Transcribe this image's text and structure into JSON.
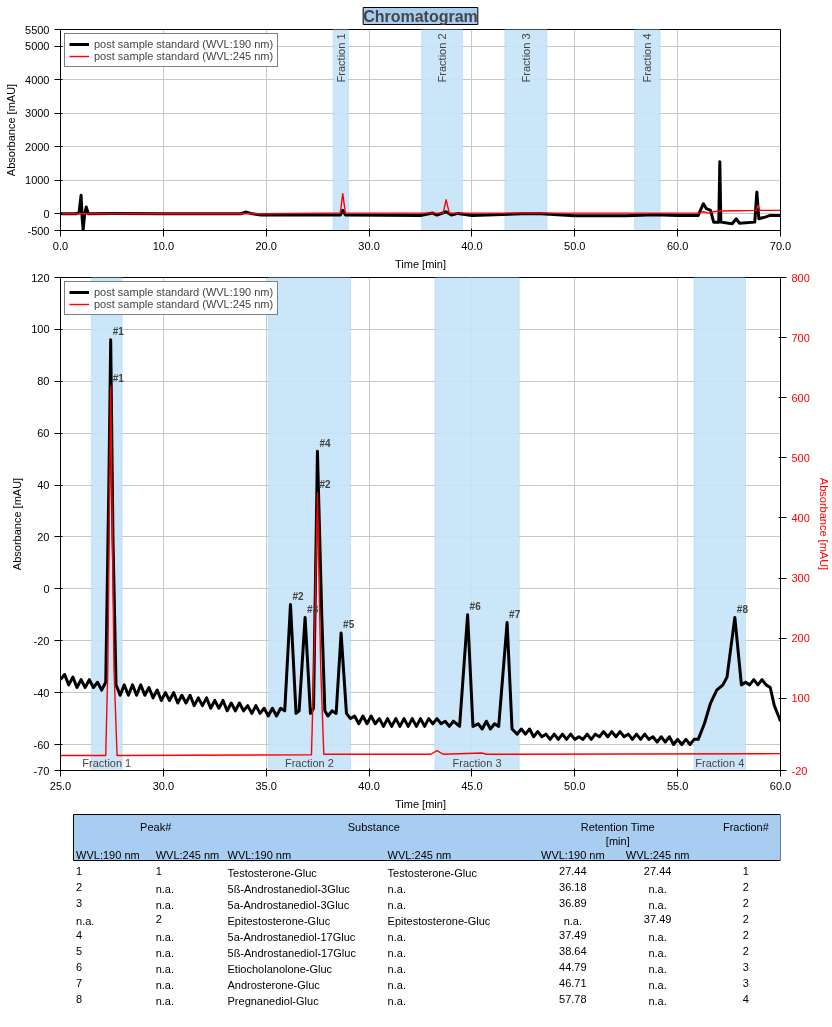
{
  "chart_data": [
    {
      "type": "line",
      "title": "Chromatogram",
      "xlabel": "Time [min]",
      "ylabel": "Absorbance [mAU]",
      "xlim": [
        0,
        70
      ],
      "xticks": [
        {
          "value": 0,
          "label": "0.0"
        },
        {
          "value": 10,
          "label": "10.0"
        },
        {
          "value": 20,
          "label": "20.0"
        },
        {
          "value": 30,
          "label": "30.0"
        },
        {
          "value": 40,
          "label": "40.0"
        },
        {
          "value": 50,
          "label": "50.0"
        },
        {
          "value": 60,
          "label": "60.0"
        },
        {
          "value": 70,
          "label": "70.0"
        }
      ],
      "ylim": [
        -500,
        5500
      ],
      "yticks": [
        -500,
        0,
        1000,
        2000,
        3000,
        4000,
        5000,
        5500
      ],
      "grid": true,
      "legend": "top left",
      "bands": [
        {
          "axis": "x",
          "from": 26.5,
          "to": 28.0,
          "label": "Fraction 1",
          "color": "#c5e3f7"
        },
        {
          "axis": "x",
          "from": 35.1,
          "to": 39.1,
          "label": "Fraction 2",
          "color": "#c5e3f7"
        },
        {
          "axis": "x",
          "from": 43.2,
          "to": 47.3,
          "label": "Fraction 3",
          "color": "#c5e3f7"
        },
        {
          "axis": "x",
          "from": 55.8,
          "to": 58.3,
          "label": "Fraction 4",
          "color": "#c5e3f7"
        }
      ],
      "series": [
        {
          "name": "post sample standard (WVL:190 nm)",
          "color": "#000000",
          "x": [
            0,
            1.5,
            1.8,
            2.0,
            2.1,
            2.2,
            2.35,
            2.5,
            2.7,
            5,
            10,
            17.5,
            18,
            18.5,
            19.5,
            25,
            27.2,
            27.44,
            27.7,
            35,
            36.18,
            36.6,
            37.49,
            38.0,
            38.64,
            40,
            44.79,
            46.71,
            50,
            55,
            57.78,
            60,
            62,
            62.5,
            62.8,
            63.2,
            63.5,
            64.0,
            64.1,
            64.2,
            65.3,
            65.7,
            66,
            67.5,
            67.7,
            67.9,
            68.5,
            69,
            70
          ],
          "values": [
            0,
            0,
            30,
            550,
            -100,
            -480,
            0,
            200,
            0,
            10,
            0,
            0,
            50,
            10,
            -40,
            -40,
            -40,
            100,
            -40,
            -50,
            20,
            -40,
            60,
            -40,
            10,
            -50,
            0,
            0,
            -60,
            -60,
            -30,
            -50,
            -50,
            300,
            150,
            100,
            -250,
            -250,
            1550,
            -250,
            -300,
            -150,
            -280,
            -250,
            650,
            -150,
            -100,
            -50,
            -50
          ]
        },
        {
          "name": "post sample standard (WVL:245 nm)",
          "color": "#ff0000",
          "x": [
            0,
            2,
            20,
            25,
            27.2,
            27.44,
            27.7,
            37.2,
            37.49,
            37.8,
            62,
            62.5,
            63,
            63.5,
            64,
            66,
            67.6,
            67.8,
            68,
            70
          ],
          "values": [
            0,
            0,
            0,
            20,
            20,
            600,
            20,
            20,
            420,
            20,
            20,
            60,
            20,
            60,
            80,
            90,
            100,
            250,
            100,
            100
          ]
        }
      ]
    },
    {
      "type": "line",
      "xlabel": "Time [min]",
      "ylabel": "Absorbance [mAU]",
      "y2label": "Absorbance [mAU]",
      "xlim": [
        25,
        60
      ],
      "xticks": [
        {
          "value": 25,
          "label": "25.0"
        },
        {
          "value": 30,
          "label": "30.0"
        },
        {
          "value": 35,
          "label": "35.0"
        },
        {
          "value": 40,
          "label": "40.0"
        },
        {
          "value": 45,
          "label": "45.0"
        },
        {
          "value": 50,
          "label": "50.0"
        },
        {
          "value": 55,
          "label": "55.0"
        },
        {
          "value": 60,
          "label": "60.0"
        }
      ],
      "ylim": [
        -70,
        120
      ],
      "yticks": [
        -70,
        -60,
        -40,
        -20,
        0,
        20,
        40,
        60,
        80,
        100,
        120
      ],
      "y2lim": [
        -20,
        800
      ],
      "y2ticks": [
        -20,
        100,
        200,
        300,
        400,
        500,
        600,
        700,
        800
      ],
      "grid": true,
      "legend": "top left",
      "bands": [
        {
          "axis": "x",
          "from": 26.5,
          "to": 28.0,
          "label": "Fraction 1",
          "color": "#c5e3f7"
        },
        {
          "axis": "x",
          "from": 35.1,
          "to": 39.1,
          "label": "Fraction 2",
          "color": "#c5e3f7"
        },
        {
          "axis": "x",
          "from": 43.2,
          "to": 47.3,
          "label": "Fraction 3",
          "color": "#c5e3f7"
        },
        {
          "axis": "x",
          "from": 55.8,
          "to": 58.3,
          "label": "Fraction 4",
          "color": "#c5e3f7"
        }
      ],
      "annotations": [
        {
          "text": "#1",
          "x": 27.44,
          "y": 97
        },
        {
          "text": "#1",
          "x": 27.44,
          "y": 79
        },
        {
          "text": "#2",
          "x": 36.18,
          "y": -5
        },
        {
          "text": "#3",
          "x": 36.89,
          "y": -10
        },
        {
          "text": "#4",
          "x": 37.49,
          "y": 54
        },
        {
          "text": "#2",
          "x": 37.49,
          "y": 38
        },
        {
          "text": "#5",
          "x": 38.64,
          "y": -16
        },
        {
          "text": "#6",
          "x": 44.79,
          "y": -9
        },
        {
          "text": "#7",
          "x": 46.71,
          "y": -12
        },
        {
          "text": "#8",
          "x": 57.78,
          "y": -10
        }
      ],
      "series": [
        {
          "name": "post sample standard (WVL:190 nm)",
          "color": "#000000",
          "x": [
            25.0,
            25.2,
            25.4,
            25.6,
            25.8,
            26.0,
            26.2,
            26.4,
            26.6,
            26.8,
            27.0,
            27.2,
            27.35,
            27.44,
            27.55,
            27.7,
            27.9,
            28.1,
            28.3,
            28.5,
            28.7,
            28.9,
            29.1,
            29.3,
            29.5,
            29.7,
            29.9,
            30.1,
            30.3,
            30.5,
            30.7,
            30.9,
            31.1,
            31.3,
            31.5,
            31.7,
            31.9,
            32.1,
            32.3,
            32.5,
            32.7,
            32.9,
            33.1,
            33.3,
            33.5,
            33.7,
            33.9,
            34.1,
            34.3,
            34.5,
            34.7,
            34.9,
            35.1,
            35.3,
            35.5,
            35.7,
            35.9,
            36.18,
            36.45,
            36.6,
            36.89,
            37.15,
            37.3,
            37.49,
            37.7,
            37.85,
            38.0,
            38.2,
            38.4,
            38.64,
            38.9,
            39.1,
            39.3,
            39.5,
            39.7,
            39.9,
            40.1,
            40.3,
            40.5,
            40.7,
            40.9,
            41.1,
            41.3,
            41.5,
            41.7,
            41.9,
            42.1,
            42.3,
            42.5,
            42.7,
            42.9,
            43.1,
            43.3,
            43.5,
            43.7,
            43.9,
            44.1,
            44.4,
            44.79,
            45.05,
            45.3,
            45.5,
            45.7,
            45.9,
            46.1,
            46.3,
            46.71,
            46.95,
            47.2,
            47.4,
            47.6,
            47.8,
            48.0,
            48.2,
            48.4,
            48.6,
            48.8,
            49.0,
            49.2,
            49.4,
            49.6,
            49.8,
            50.0,
            50.2,
            50.4,
            50.6,
            50.8,
            51.0,
            51.2,
            51.4,
            51.6,
            51.8,
            52.0,
            52.2,
            52.4,
            52.6,
            52.8,
            53.0,
            53.2,
            53.4,
            53.6,
            53.8,
            54.0,
            54.2,
            54.4,
            54.6,
            54.8,
            55.0,
            55.2,
            55.4,
            55.6,
            55.8,
            56.0,
            56.3,
            56.6,
            56.9,
            57.2,
            57.4,
            57.78,
            58.1,
            58.3,
            58.5,
            58.7,
            58.9,
            59.1,
            59.3,
            59.5,
            59.7,
            59.9,
            60.0
          ],
          "values": [
            -35,
            -33,
            -37,
            -34,
            -38,
            -35,
            -38,
            -35,
            -38,
            -36,
            -39,
            -36,
            40,
            96,
            20,
            -37,
            -41,
            -37,
            -41,
            -37,
            -41,
            -37,
            -41,
            -38,
            -42,
            -39,
            -43,
            -40,
            -43,
            -40,
            -44,
            -41,
            -44,
            -41,
            -45,
            -42,
            -45,
            -42,
            -46,
            -43,
            -46,
            -43,
            -47,
            -44,
            -47,
            -44,
            -47,
            -45,
            -48,
            -45,
            -48,
            -46,
            -49,
            -46,
            -49,
            -46,
            -47,
            -6,
            -48,
            -47,
            -11,
            -48,
            -46,
            53,
            -10,
            -47,
            -49,
            -47,
            -48,
            -17,
            -48,
            -50,
            -49,
            -52,
            -49,
            -52,
            -49,
            -52,
            -50,
            -53,
            -50,
            -53,
            -50,
            -53,
            -50,
            -53,
            -50,
            -53,
            -50,
            -53,
            -50,
            -52,
            -50,
            -52,
            -51,
            -53,
            -51,
            -53,
            -10,
            -53,
            -52,
            -54,
            -51,
            -54,
            -52,
            -53,
            -13,
            -54,
            -56,
            -54,
            -56,
            -54,
            -57,
            -55,
            -57,
            -56,
            -58,
            -56,
            -58,
            -56,
            -58,
            -56,
            -58,
            -57,
            -58,
            -56,
            -58,
            -56,
            -57,
            -55,
            -57,
            -55,
            -57,
            -55,
            -57,
            -56,
            -58,
            -56,
            -58,
            -56,
            -58,
            -57,
            -59,
            -57,
            -59,
            -57,
            -60,
            -58,
            -60,
            -58,
            -60,
            -58,
            -58,
            -52,
            -44,
            -39,
            -37,
            -34,
            -11,
            -37,
            -36,
            -37,
            -35,
            -37,
            -35,
            -37,
            -38,
            -45,
            -49,
            -51
          ]
        },
        {
          "name": "post sample standard (WVL:245 nm)",
          "color": "#ff0000",
          "axis": "y2",
          "x": [
            25,
            27.2,
            27.3,
            27.44,
            27.6,
            27.75,
            37.2,
            37.35,
            37.49,
            37.65,
            37.8,
            43.0,
            43.3,
            43.6,
            45.5,
            45.7,
            60
          ],
          "values": [
            5,
            5,
            150,
            619,
            150,
            5,
            6,
            200,
            442,
            150,
            7,
            7,
            13,
            7,
            9,
            7,
            8
          ]
        }
      ]
    },
    {
      "type": "other",
      "annotations": [
        "Peak#\tSubstance\tRetention Time\n[min]\tFraction#",
        "WVL:190 nm\tWVL:245 nm\tWVL:190 nm\tWVL:245 nm\tWVL:190 nm\tWVL:245 nm",
        "1\t1\tTestosterone-Gluc\tTestosterone-Gluc\t27.44\t27.44\t1",
        "2\tn.a.\t5ß-Androstanediol-3Gluc\tn.a.\t36.18\tn.a.\t2",
        "3\tn.a.\t5a-Androstanediol-3Gluc\tn.a.\t36.89\tn.a.\t2",
        "n.a.\t2\tEpitestosterone-Gluc\tEpitestosterone-Gluc\tn.a.\t37.49\t2",
        "4\tn.a.\t5a-Androstanediol-17Gluc\tn.a.\t37.49\tn.a.\t2",
        "5\tn.a.\t5ß-Androstanediol-17Gluc\tn.a.\t38.64\tn.a.\t2",
        "6\tn.a.\tEtiocholanolone-Gluc\tn.a.\t44.79\tn.a.\t3",
        "7\tn.a.\tAndrosterone-Gluc\tn.a.\t46.71\tn.a.\t3",
        "8\tn.a.\tPregnanediol-Gluc\tn.a.\t57.78\tn.a.\t4"
      ]
    }
  ]
}
